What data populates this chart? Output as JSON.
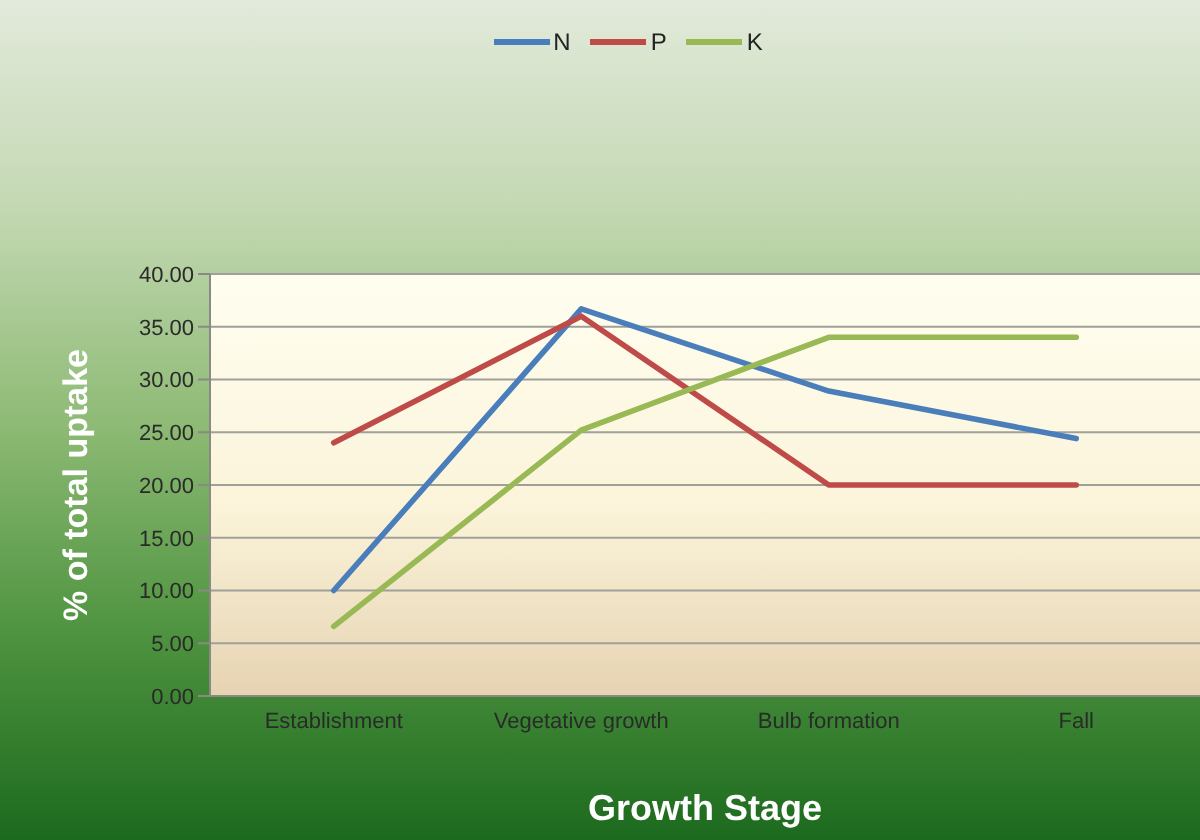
{
  "chart_data": {
    "type": "line",
    "xlabel": "Growth Stage",
    "ylabel": "% of total uptake",
    "categories": [
      "Establishment",
      "Vegetative growth",
      "Bulb formation",
      "Fall"
    ],
    "series": [
      {
        "name": "N",
        "color": "#4a7ebb",
        "values": [
          10,
          36.7,
          28.9,
          24.4
        ]
      },
      {
        "name": "P",
        "color": "#be4b48",
        "values": [
          24,
          36,
          20,
          20
        ]
      },
      {
        "name": "K",
        "color": "#98b954",
        "values": [
          6.6,
          25.2,
          34,
          34
        ]
      }
    ],
    "ylim": [
      0,
      40
    ],
    "yticks": [
      {
        "value": 0,
        "label": "0.00"
      },
      {
        "value": 5,
        "label": "5.00"
      },
      {
        "value": 10,
        "label": "10.00"
      },
      {
        "value": 15,
        "label": "15.00"
      },
      {
        "value": 20,
        "label": "20.00"
      },
      {
        "value": 25,
        "label": "25.00"
      },
      {
        "value": 30,
        "label": "30.00"
      },
      {
        "value": 35,
        "label": "35.00"
      },
      {
        "value": 40,
        "label": "40.00"
      }
    ],
    "grid": "y",
    "legend": "top",
    "marker": "none",
    "line_style": "solid"
  }
}
